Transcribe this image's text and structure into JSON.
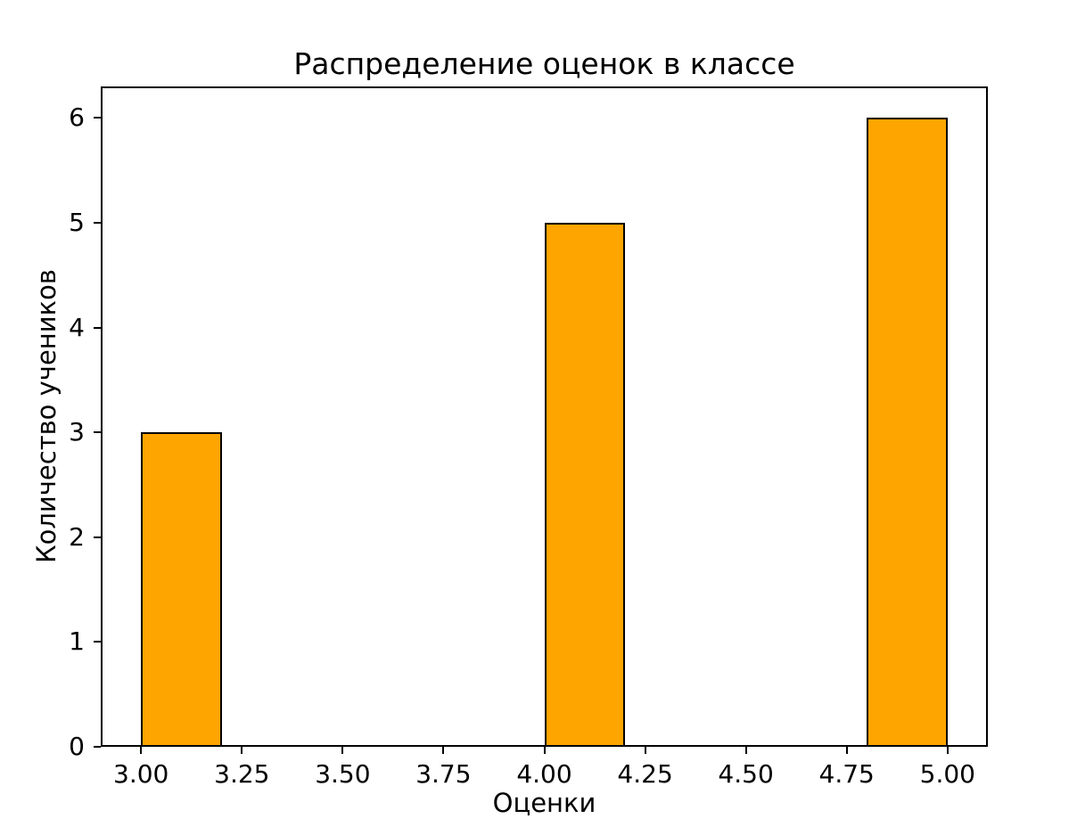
{
  "chart_data": {
    "type": "bar",
    "title": "Распределение оценок в классе",
    "xlabel": "Оценки",
    "ylabel": "Количество учеников",
    "bars": [
      {
        "x_start": 3.0,
        "x_end": 3.2,
        "value": 3
      },
      {
        "x_start": 4.0,
        "x_end": 4.2,
        "value": 5
      },
      {
        "x_start": 4.8,
        "x_end": 5.0,
        "value": 6
      }
    ],
    "categories": [
      "3",
      "4",
      "5"
    ],
    "values": [
      3,
      5,
      6
    ],
    "x_ticks": [
      {
        "value": 3.0,
        "label": "3.00"
      },
      {
        "value": 3.25,
        "label": "3.25"
      },
      {
        "value": 3.5,
        "label": "3.50"
      },
      {
        "value": 3.75,
        "label": "3.75"
      },
      {
        "value": 4.0,
        "label": "4.00"
      },
      {
        "value": 4.25,
        "label": "4.25"
      },
      {
        "value": 4.5,
        "label": "4.50"
      },
      {
        "value": 4.75,
        "label": "4.75"
      },
      {
        "value": 5.0,
        "label": "5.00"
      }
    ],
    "y_ticks": [
      {
        "value": 0,
        "label": "0"
      },
      {
        "value": 1,
        "label": "1"
      },
      {
        "value": 2,
        "label": "2"
      },
      {
        "value": 3,
        "label": "3"
      },
      {
        "value": 4,
        "label": "4"
      },
      {
        "value": 5,
        "label": "5"
      },
      {
        "value": 6,
        "label": "6"
      }
    ],
    "xlim": [
      2.9,
      5.1
    ],
    "ylim": [
      0,
      6.3
    ],
    "grid": false,
    "legend": null,
    "bar_color": "#FFA500",
    "bar_edge_color": "#000000",
    "axis_color": "#000000",
    "background_color": "#FFFFFF"
  }
}
